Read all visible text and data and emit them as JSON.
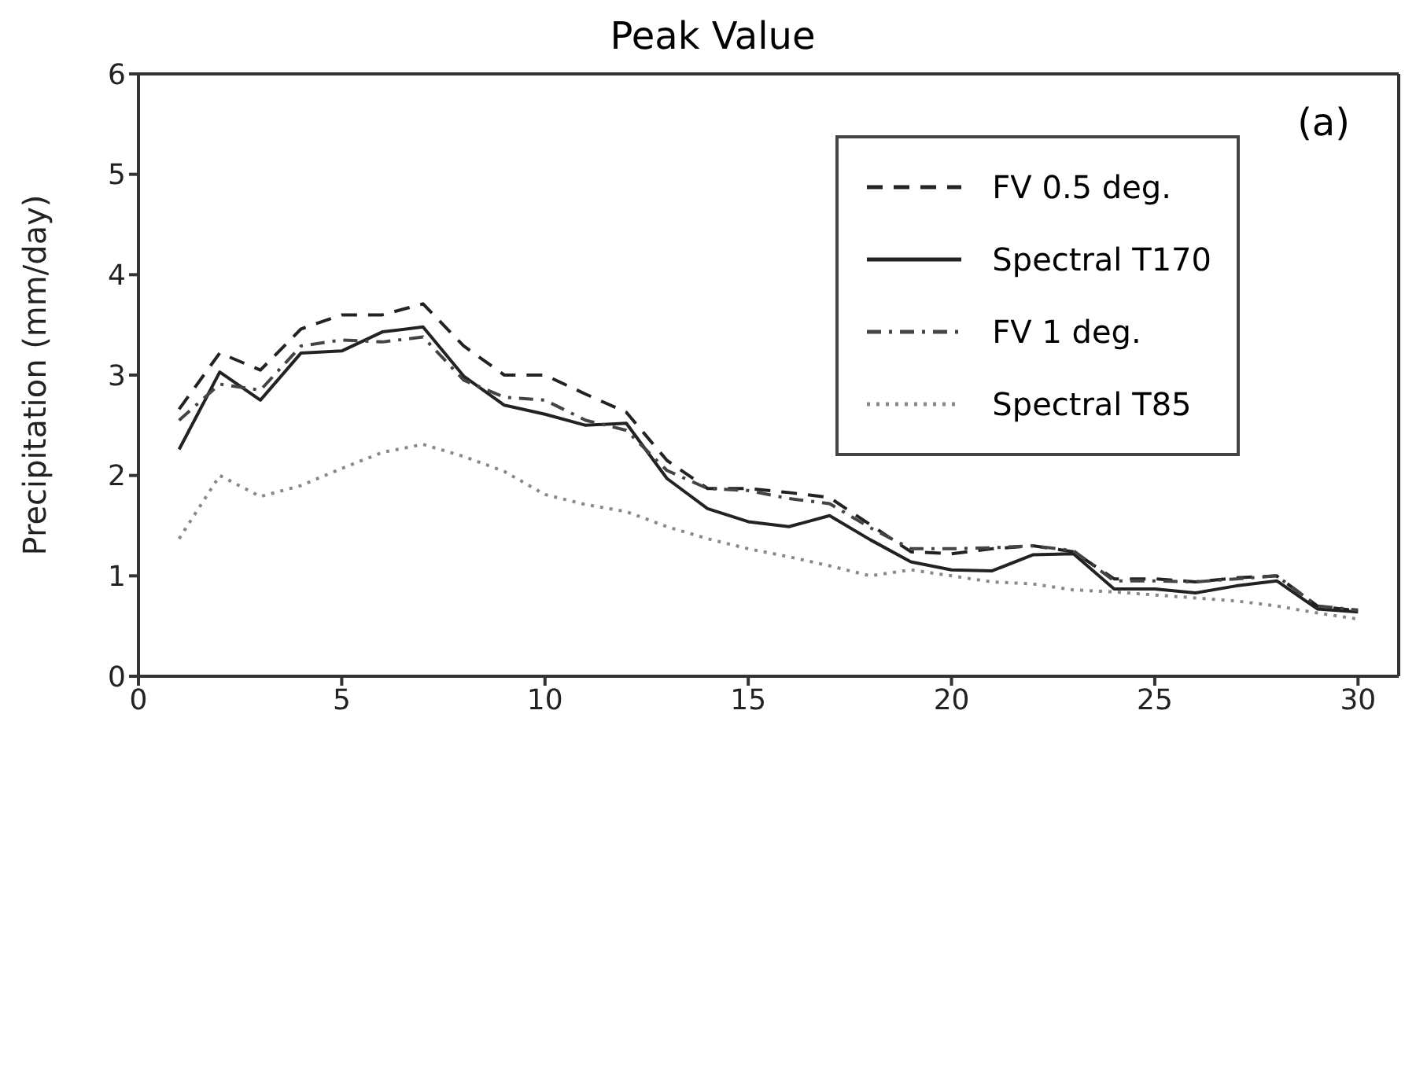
{
  "chart_data": {
    "type": "line",
    "title": "Peak Value",
    "ylabel": "Precipitation (mm/day)",
    "annotations": [
      "(a)"
    ],
    "x": [
      1,
      2,
      3,
      4,
      5,
      6,
      7,
      8,
      9,
      10,
      11,
      12,
      13,
      14,
      15,
      16,
      17,
      18,
      19,
      20,
      21,
      22,
      23,
      24,
      25,
      26,
      27,
      28,
      29,
      30
    ],
    "xlim": [
      0,
      31
    ],
    "xticks": [
      0,
      5,
      10,
      15,
      20,
      25,
      30
    ],
    "ylim": [
      0,
      6
    ],
    "yticks": [
      0,
      1,
      2,
      3,
      4,
      5,
      6
    ],
    "grid": false,
    "legend": "top right",
    "marker": "none",
    "series": [
      {
        "name": "FV 0.5 deg.",
        "color": "#222222",
        "line_style": "dashed",
        "values": [
          2.66,
          3.22,
          3.05,
          3.46,
          3.6,
          3.6,
          3.71,
          3.29,
          3.0,
          3.0,
          2.81,
          2.63,
          2.15,
          1.87,
          1.87,
          1.83,
          1.78,
          1.51,
          1.24,
          1.22,
          1.27,
          1.3,
          1.24,
          0.97,
          0.97,
          0.94,
          0.98,
          1.0,
          0.7,
          0.65
        ]
      },
      {
        "name": "Spectral T170",
        "color": "#222222",
        "line_style": "solid",
        "values": [
          2.26,
          3.03,
          2.75,
          3.22,
          3.24,
          3.43,
          3.48,
          2.99,
          2.7,
          2.61,
          2.5,
          2.52,
          1.97,
          1.67,
          1.54,
          1.49,
          1.6,
          1.36,
          1.14,
          1.06,
          1.05,
          1.21,
          1.22,
          0.87,
          0.87,
          0.83,
          0.9,
          0.95,
          0.67,
          0.64
        ]
      },
      {
        "name": "FV 1 deg.",
        "color": "#444444",
        "line_style": "dashdot",
        "values": [
          2.55,
          2.91,
          2.85,
          3.29,
          3.35,
          3.33,
          3.38,
          2.95,
          2.78,
          2.75,
          2.55,
          2.45,
          2.05,
          1.87,
          1.85,
          1.77,
          1.72,
          1.48,
          1.27,
          1.27,
          1.28,
          1.3,
          1.25,
          0.95,
          0.95,
          0.94,
          0.97,
          1.0,
          0.7,
          0.66
        ]
      },
      {
        "name": "Spectral T85",
        "color": "#888888",
        "line_style": "dotted",
        "values": [
          1.37,
          2.0,
          1.79,
          1.9,
          2.07,
          2.23,
          2.31,
          2.19,
          2.04,
          1.81,
          1.71,
          1.64,
          1.49,
          1.37,
          1.27,
          1.19,
          1.1,
          1.0,
          1.06,
          1.0,
          0.94,
          0.92,
          0.86,
          0.84,
          0.81,
          0.78,
          0.75,
          0.7,
          0.63,
          0.57
        ]
      }
    ]
  }
}
